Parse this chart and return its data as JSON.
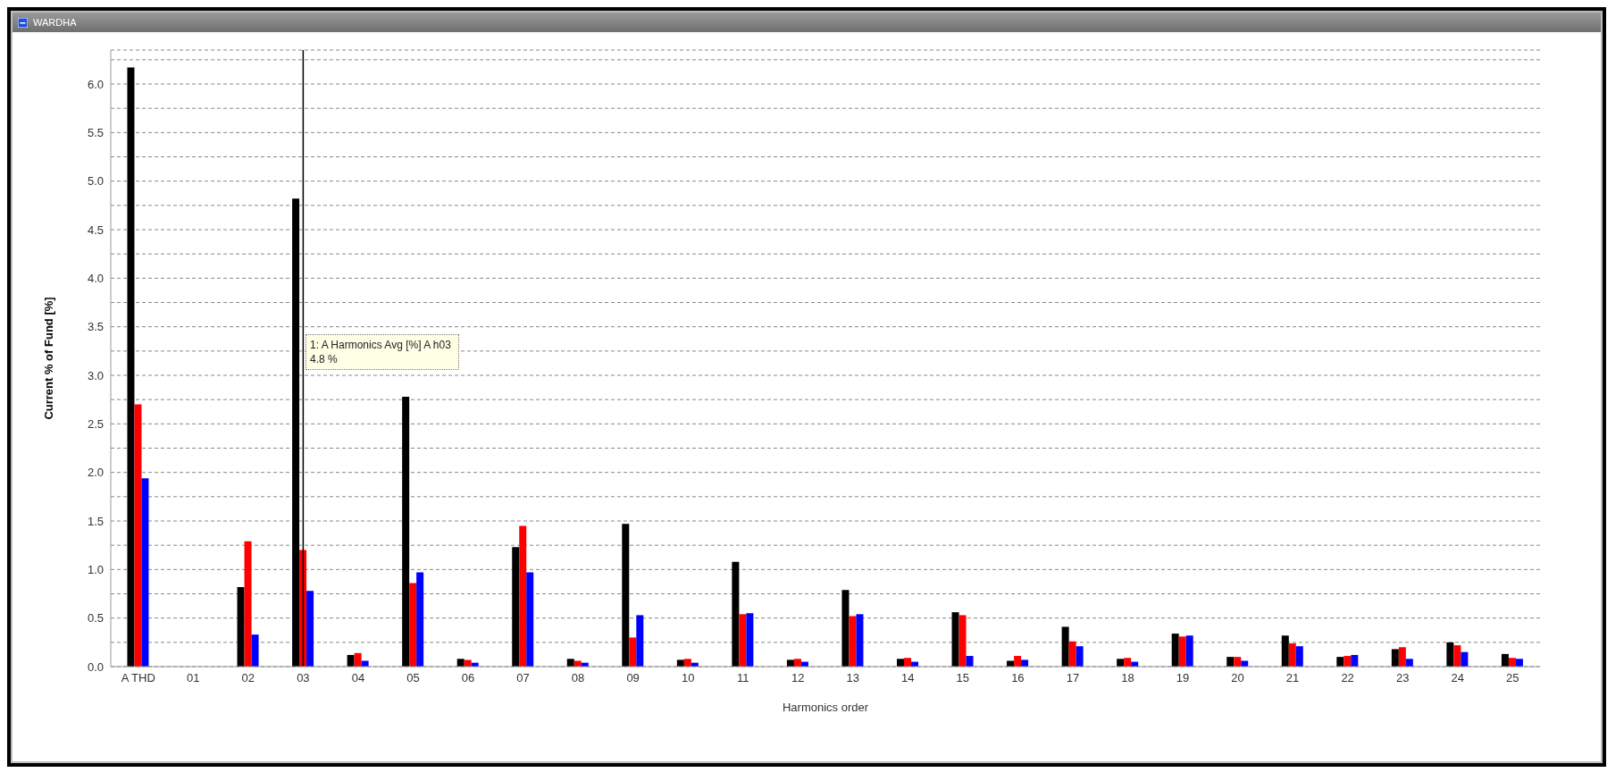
{
  "chart_data": {
    "type": "bar",
    "title": "WARDHA",
    "xlabel": "Harmonics order",
    "ylabel": "Current % of Fund [%]",
    "categories": [
      "A THD",
      "01",
      "02",
      "03",
      "04",
      "05",
      "06",
      "07",
      "08",
      "09",
      "10",
      "11",
      "12",
      "13",
      "14",
      "15",
      "16",
      "17",
      "18",
      "19",
      "20",
      "21",
      "22",
      "23",
      "24",
      "25"
    ],
    "series": [
      {
        "color": "#000000",
        "values": [
          6.17,
          null,
          0.82,
          4.82,
          0.12,
          2.78,
          0.08,
          1.23,
          0.08,
          1.47,
          0.07,
          1.08,
          0.07,
          0.79,
          0.08,
          0.56,
          0.06,
          0.41,
          0.08,
          0.34,
          0.1,
          0.32,
          0.1,
          0.18,
          0.25,
          0.13
        ]
      },
      {
        "color": "#ff0000",
        "values": [
          2.7,
          null,
          1.29,
          1.2,
          0.14,
          0.86,
          0.07,
          1.45,
          0.06,
          0.3,
          0.08,
          0.54,
          0.08,
          0.52,
          0.09,
          0.53,
          0.11,
          0.26,
          0.09,
          0.31,
          0.1,
          0.24,
          0.11,
          0.2,
          0.22,
          0.09
        ]
      },
      {
        "color": "#0000ff",
        "values": [
          1.94,
          null,
          0.33,
          0.78,
          0.06,
          0.97,
          0.04,
          0.97,
          0.04,
          0.53,
          0.04,
          0.55,
          0.05,
          0.54,
          0.05,
          0.11,
          0.07,
          0.21,
          0.05,
          0.32,
          0.06,
          0.21,
          0.12,
          0.08,
          0.15,
          0.08
        ]
      }
    ],
    "ylim": [
      0,
      6.35
    ],
    "yticks": [
      {
        "value": 0,
        "label": "0.0"
      },
      {
        "value": 0.25,
        "label": null
      },
      {
        "value": 0.5,
        "label": "0.5"
      },
      {
        "value": 0.75,
        "label": null
      },
      {
        "value": 1,
        "label": "1.0"
      },
      {
        "value": 1.25,
        "label": null
      },
      {
        "value": 1.5,
        "label": "1.5"
      },
      {
        "value": 1.75,
        "label": null
      },
      {
        "value": 2,
        "label": "2.0"
      },
      {
        "value": 2.25,
        "label": null
      },
      {
        "value": 2.5,
        "label": "2.5"
      },
      {
        "value": 2.75,
        "label": null
      },
      {
        "value": 3,
        "label": "3.0"
      },
      {
        "value": 3.25,
        "label": null
      },
      {
        "value": 3.5,
        "label": "3.5"
      },
      {
        "value": 3.75,
        "label": null
      },
      {
        "value": 4,
        "label": "4.0"
      },
      {
        "value": 4.25,
        "label": null
      },
      {
        "value": 4.5,
        "label": "4.5"
      },
      {
        "value": 4.75,
        "label": null
      },
      {
        "value": 5,
        "label": "5.0"
      },
      {
        "value": 5.25,
        "label": null
      },
      {
        "value": 5.5,
        "label": "5.5"
      },
      {
        "value": 5.75,
        "label": null
      },
      {
        "value": 6,
        "label": "6.0"
      },
      {
        "value": 6.25,
        "label": null
      }
    ],
    "grid": "y",
    "ref_lines": [
      {
        "axis": "x",
        "value": "03",
        "color": "#000000"
      }
    ],
    "annotations": [
      "1: A Harmonics Avg [%] A h03\n4.8 %"
    ]
  }
}
